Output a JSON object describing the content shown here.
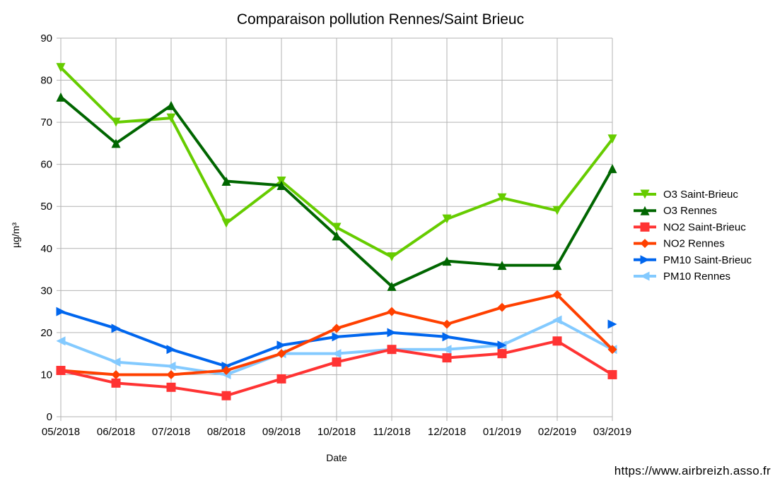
{
  "chart_data": {
    "type": "line",
    "title": "Comparaison pollution Rennes/Saint Brieuc",
    "xlabel": "Date",
    "ylabel": "µg/m³",
    "ylim": [
      0,
      90
    ],
    "yticks": [
      0,
      10,
      20,
      30,
      40,
      50,
      60,
      70,
      80,
      90
    ],
    "grid": true,
    "legend_position": "right",
    "categories": [
      "05/2018",
      "06/2018",
      "07/2018",
      "08/2018",
      "09/2018",
      "10/2018",
      "11/2018",
      "12/2018",
      "01/2019",
      "02/2019",
      "03/2019"
    ],
    "series": [
      {
        "name": "O3 Saint-Brieuc",
        "color": "#66cc00",
        "marker": "triangle-down",
        "values": [
          83,
          70,
          71,
          46,
          56,
          45,
          38,
          47,
          52,
          49,
          66
        ]
      },
      {
        "name": "O3 Rennes",
        "color": "#006600",
        "marker": "triangle-up",
        "values": [
          76,
          65,
          74,
          56,
          55,
          43,
          31,
          37,
          36,
          36,
          59
        ]
      },
      {
        "name": "NO2 Saint-Brieuc",
        "color": "#ff3333",
        "marker": "square",
        "values": [
          11,
          8,
          7,
          5,
          9,
          13,
          16,
          14,
          15,
          18,
          10
        ]
      },
      {
        "name": "NO2 Rennes",
        "color": "#ff4000",
        "marker": "diamond",
        "values": [
          11,
          10,
          10,
          11,
          15,
          21,
          25,
          22,
          26,
          29,
          16
        ]
      },
      {
        "name": "PM10 Saint-Brieuc",
        "color": "#0066ee",
        "marker": "triangle-right",
        "values": [
          25,
          21,
          16,
          12,
          17,
          19,
          20,
          19,
          17,
          null,
          22
        ]
      },
      {
        "name": "PM10 Rennes",
        "color": "#83caff",
        "marker": "triangle-left",
        "values": [
          18,
          13,
          12,
          10,
          15,
          15,
          16,
          16,
          17,
          23,
          16
        ]
      }
    ]
  },
  "footer": {
    "url": "https://www.airbreizh.asso.fr"
  }
}
